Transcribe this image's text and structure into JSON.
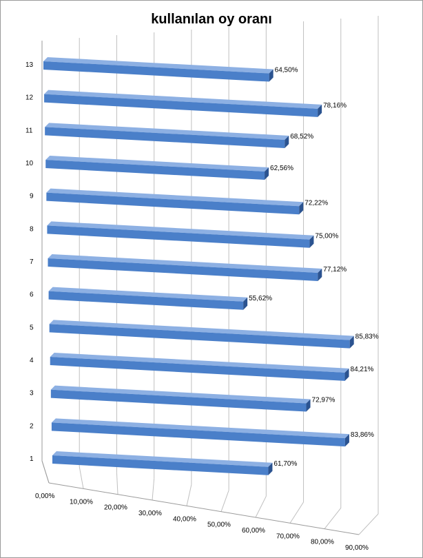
{
  "chart_data": {
    "type": "bar",
    "orientation": "horizontal",
    "style": "3d",
    "title": "kullanılan oy oranı",
    "categories": [
      "1",
      "2",
      "3",
      "4",
      "5",
      "6",
      "7",
      "8",
      "9",
      "10",
      "11",
      "12",
      "13"
    ],
    "values": [
      61.7,
      83.86,
      72.97,
      84.21,
      85.83,
      55.62,
      77.12,
      75.0,
      72.22,
      62.56,
      68.52,
      78.16,
      64.5
    ],
    "value_labels": [
      "61,70%",
      "83,86%",
      "72,97%",
      "84,21%",
      "85,83%",
      "55,62%",
      "77,12%",
      "75,00%",
      "72,22%",
      "62,56%",
      "68,52%",
      "78,16%",
      "64,50%"
    ],
    "x_ticks": [
      "0,00%",
      "10,00%",
      "20,00%",
      "30,00%",
      "40,00%",
      "50,00%",
      "60,00%",
      "70,00%",
      "80,00%",
      "90,00%"
    ],
    "xlim": [
      0,
      90
    ],
    "grid": true,
    "legend": "none",
    "colors": {
      "bar_front": "#4a7fc9",
      "bar_top": "#8db0e3",
      "bar_side": "#2b5390",
      "grid": "#bfbfbf"
    }
  }
}
